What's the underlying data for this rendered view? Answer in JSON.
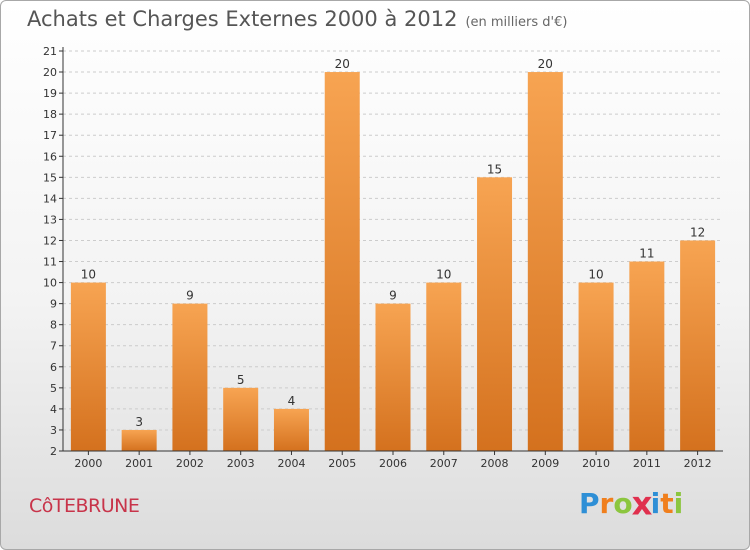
{
  "header": {
    "title": "Achats et Charges Externes 2000 à 2012",
    "subtitle": "(en milliers d'€)"
  },
  "footer": {
    "commune": "CôTEBRUNE",
    "brand_letters": [
      {
        "char": "P",
        "color": "#2e8fd6"
      },
      {
        "char": "r",
        "color": "#f07f1d"
      },
      {
        "char": "o",
        "color": "#8cc63f"
      },
      {
        "char": "x",
        "color": "#e0304e"
      },
      {
        "char": "i",
        "color": "#2e8fd6"
      },
      {
        "char": "t",
        "color": "#f07f1d"
      },
      {
        "char": "i",
        "color": "#8cc63f"
      }
    ]
  },
  "colors": {
    "bar_top": "#f7a452",
    "bar_bottom": "#d4711e",
    "grid": "#cccccc",
    "axis": "#333333",
    "label": "#333333"
  },
  "chart_data": {
    "type": "bar",
    "title": "Achats et Charges Externes 2000 à 2012",
    "subtitle": "(en milliers d'€)",
    "categories": [
      "2000",
      "2001",
      "2002",
      "2003",
      "2004",
      "2005",
      "2006",
      "2007",
      "2008",
      "2009",
      "2010",
      "2011",
      "2012"
    ],
    "values": [
      10,
      3,
      9,
      5,
      4,
      20,
      9,
      10,
      15,
      20,
      10,
      11,
      12
    ],
    "ylim": [
      2,
      21
    ],
    "yticks": [
      2,
      3,
      4,
      5,
      6,
      7,
      8,
      9,
      10,
      11,
      12,
      13,
      14,
      15,
      16,
      17,
      18,
      19,
      20,
      21
    ],
    "grid": true,
    "data_labels": true
  }
}
